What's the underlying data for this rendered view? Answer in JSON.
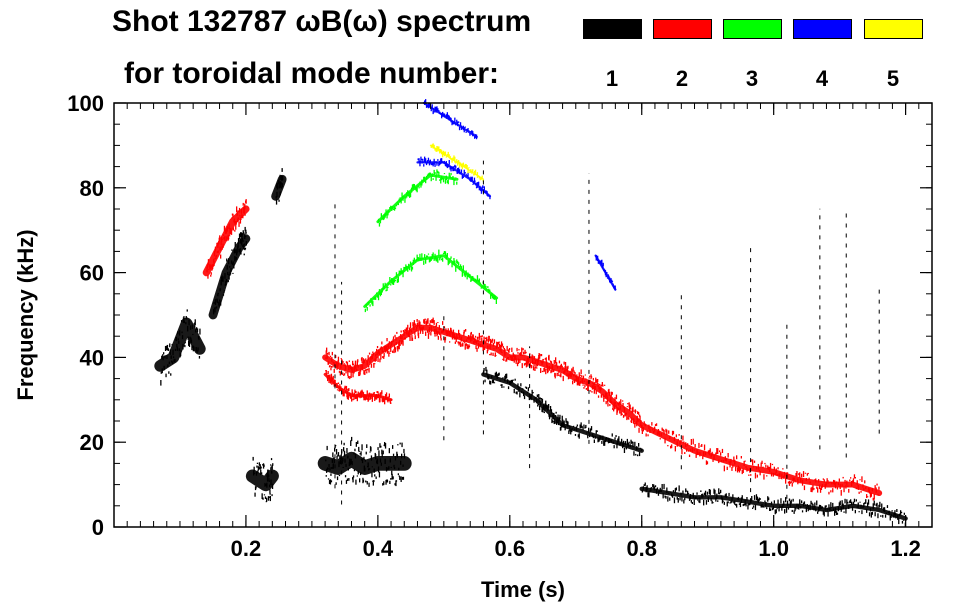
{
  "chart_data": {
    "type": "scatter",
    "title_line1": "Shot 132787 ωB(ω) spectrum",
    "title_line2": "for toroidal mode number:",
    "xlabel": "Time (s)",
    "ylabel": "Frequency (kHz)",
    "xlim": [
      0.0,
      1.24
    ],
    "ylim": [
      0,
      100
    ],
    "x_ticks": [
      0.2,
      0.4,
      0.6,
      0.8,
      1.0,
      1.2
    ],
    "x_tick_labels": [
      "0.2",
      "0.4",
      "0.6",
      "0.8",
      "1.0",
      "1.2"
    ],
    "y_ticks": [
      0,
      20,
      40,
      60,
      80,
      100
    ],
    "y_tick_labels": [
      "0",
      "20",
      "40",
      "60",
      "80",
      "100"
    ],
    "legend": [
      {
        "n": "1",
        "color": "#000000"
      },
      {
        "n": "2",
        "color": "#ff0000"
      },
      {
        "n": "3",
        "color": "#00ff00"
      },
      {
        "n": "4",
        "color": "#0000ff"
      },
      {
        "n": "5",
        "color": "#ffff00"
      }
    ],
    "series": [
      {
        "name": "n=1",
        "color": "#000000",
        "bands": [
          {
            "t": [
              0.07,
              0.09,
              0.11,
              0.13
            ],
            "f": [
              38,
              40,
              48,
              42
            ],
            "w": 8
          },
          {
            "t": [
              0.15,
              0.17,
              0.19,
              0.2
            ],
            "f": [
              50,
              60,
              66,
              68
            ],
            "w": 6
          },
          {
            "t": [
              0.21,
              0.23,
              0.24
            ],
            "f": [
              12,
              10,
              12
            ],
            "w": 9
          },
          {
            "t": [
              0.245,
              0.255
            ],
            "f": [
              78,
              82
            ],
            "w": 6
          },
          {
            "t": [
              0.32,
              0.34,
              0.36,
              0.38,
              0.4,
              0.42,
              0.44
            ],
            "f": [
              15,
              14,
              16,
              14,
              15,
              15,
              15
            ],
            "w": 10
          },
          {
            "t": [
              0.56,
              0.6,
              0.64,
              0.66,
              0.68
            ],
            "f": [
              36,
              34,
              30,
              27,
              24
            ],
            "w": 3
          },
          {
            "t": [
              0.68,
              0.72,
              0.76,
              0.8
            ],
            "f": [
              24,
              22,
              20,
              18
            ],
            "w": 3
          },
          {
            "t": [
              0.8,
              0.84,
              0.88,
              0.92,
              0.96,
              1.0,
              1.04,
              1.08,
              1.12,
              1.16,
              1.2
            ],
            "f": [
              9,
              8,
              7,
              7,
              6,
              5,
              5,
              4,
              5,
              4,
              2
            ],
            "w": 3
          }
        ]
      },
      {
        "name": "n=2",
        "color": "#ff0000",
        "bands": [
          {
            "t": [
              0.14,
              0.16,
              0.18,
              0.2
            ],
            "f": [
              60,
              66,
              72,
              75
            ],
            "w": 5
          },
          {
            "t": [
              0.32,
              0.34,
              0.36,
              0.38,
              0.4,
              0.42,
              0.44,
              0.46,
              0.48,
              0.5,
              0.52,
              0.54,
              0.56,
              0.58,
              0.6,
              0.62,
              0.64,
              0.66,
              0.68,
              0.7,
              0.72,
              0.74,
              0.76,
              0.78,
              0.8,
              0.84,
              0.88,
              0.92,
              0.96,
              1.0,
              1.04,
              1.08,
              1.12,
              1.16
            ],
            "f": [
              40,
              38,
              37,
              38,
              41,
              43,
              45,
              47,
              47,
              46,
              45,
              44,
              43,
              42,
              40,
              40,
              39,
              38,
              37,
              35,
              34,
              32,
              29,
              27,
              24,
              21,
              18,
              16,
              14,
              13,
              11,
              10,
              10,
              8
            ],
            "w": 4
          },
          {
            "t": [
              0.32,
              0.34,
              0.36,
              0.38,
              0.4,
              0.42
            ],
            "f": [
              36,
              33,
              31,
              31,
              31,
              30
            ],
            "w": 2
          }
        ]
      },
      {
        "name": "n=3",
        "color": "#00ff00",
        "bands": [
          {
            "t": [
              0.38,
              0.42,
              0.46,
              0.5,
              0.54,
              0.58
            ],
            "f": [
              52,
              58,
              63,
              64,
              59,
              54
            ],
            "w": 2
          },
          {
            "t": [
              0.4,
              0.44,
              0.48,
              0.52
            ],
            "f": [
              72,
              78,
              83,
              82
            ],
            "w": 2
          }
        ]
      },
      {
        "name": "n=4",
        "color": "#0000ff",
        "bands": [
          {
            "t": [
              0.46,
              0.5,
              0.54,
              0.57
            ],
            "f": [
              86,
              86,
              82,
              78
            ],
            "w": 1.5
          },
          {
            "t": [
              0.47,
              0.51,
              0.55
            ],
            "f": [
              100,
              96,
              92
            ],
            "w": 1.5
          },
          {
            "t": [
              0.73,
              0.76
            ],
            "f": [
              64,
              56
            ],
            "w": 1.5
          }
        ]
      },
      {
        "name": "n=5",
        "color": "#ffff00",
        "bands": [
          {
            "t": [
              0.48,
              0.52,
              0.56
            ],
            "f": [
              90,
              86,
              82
            ],
            "w": 1
          }
        ]
      }
    ]
  }
}
